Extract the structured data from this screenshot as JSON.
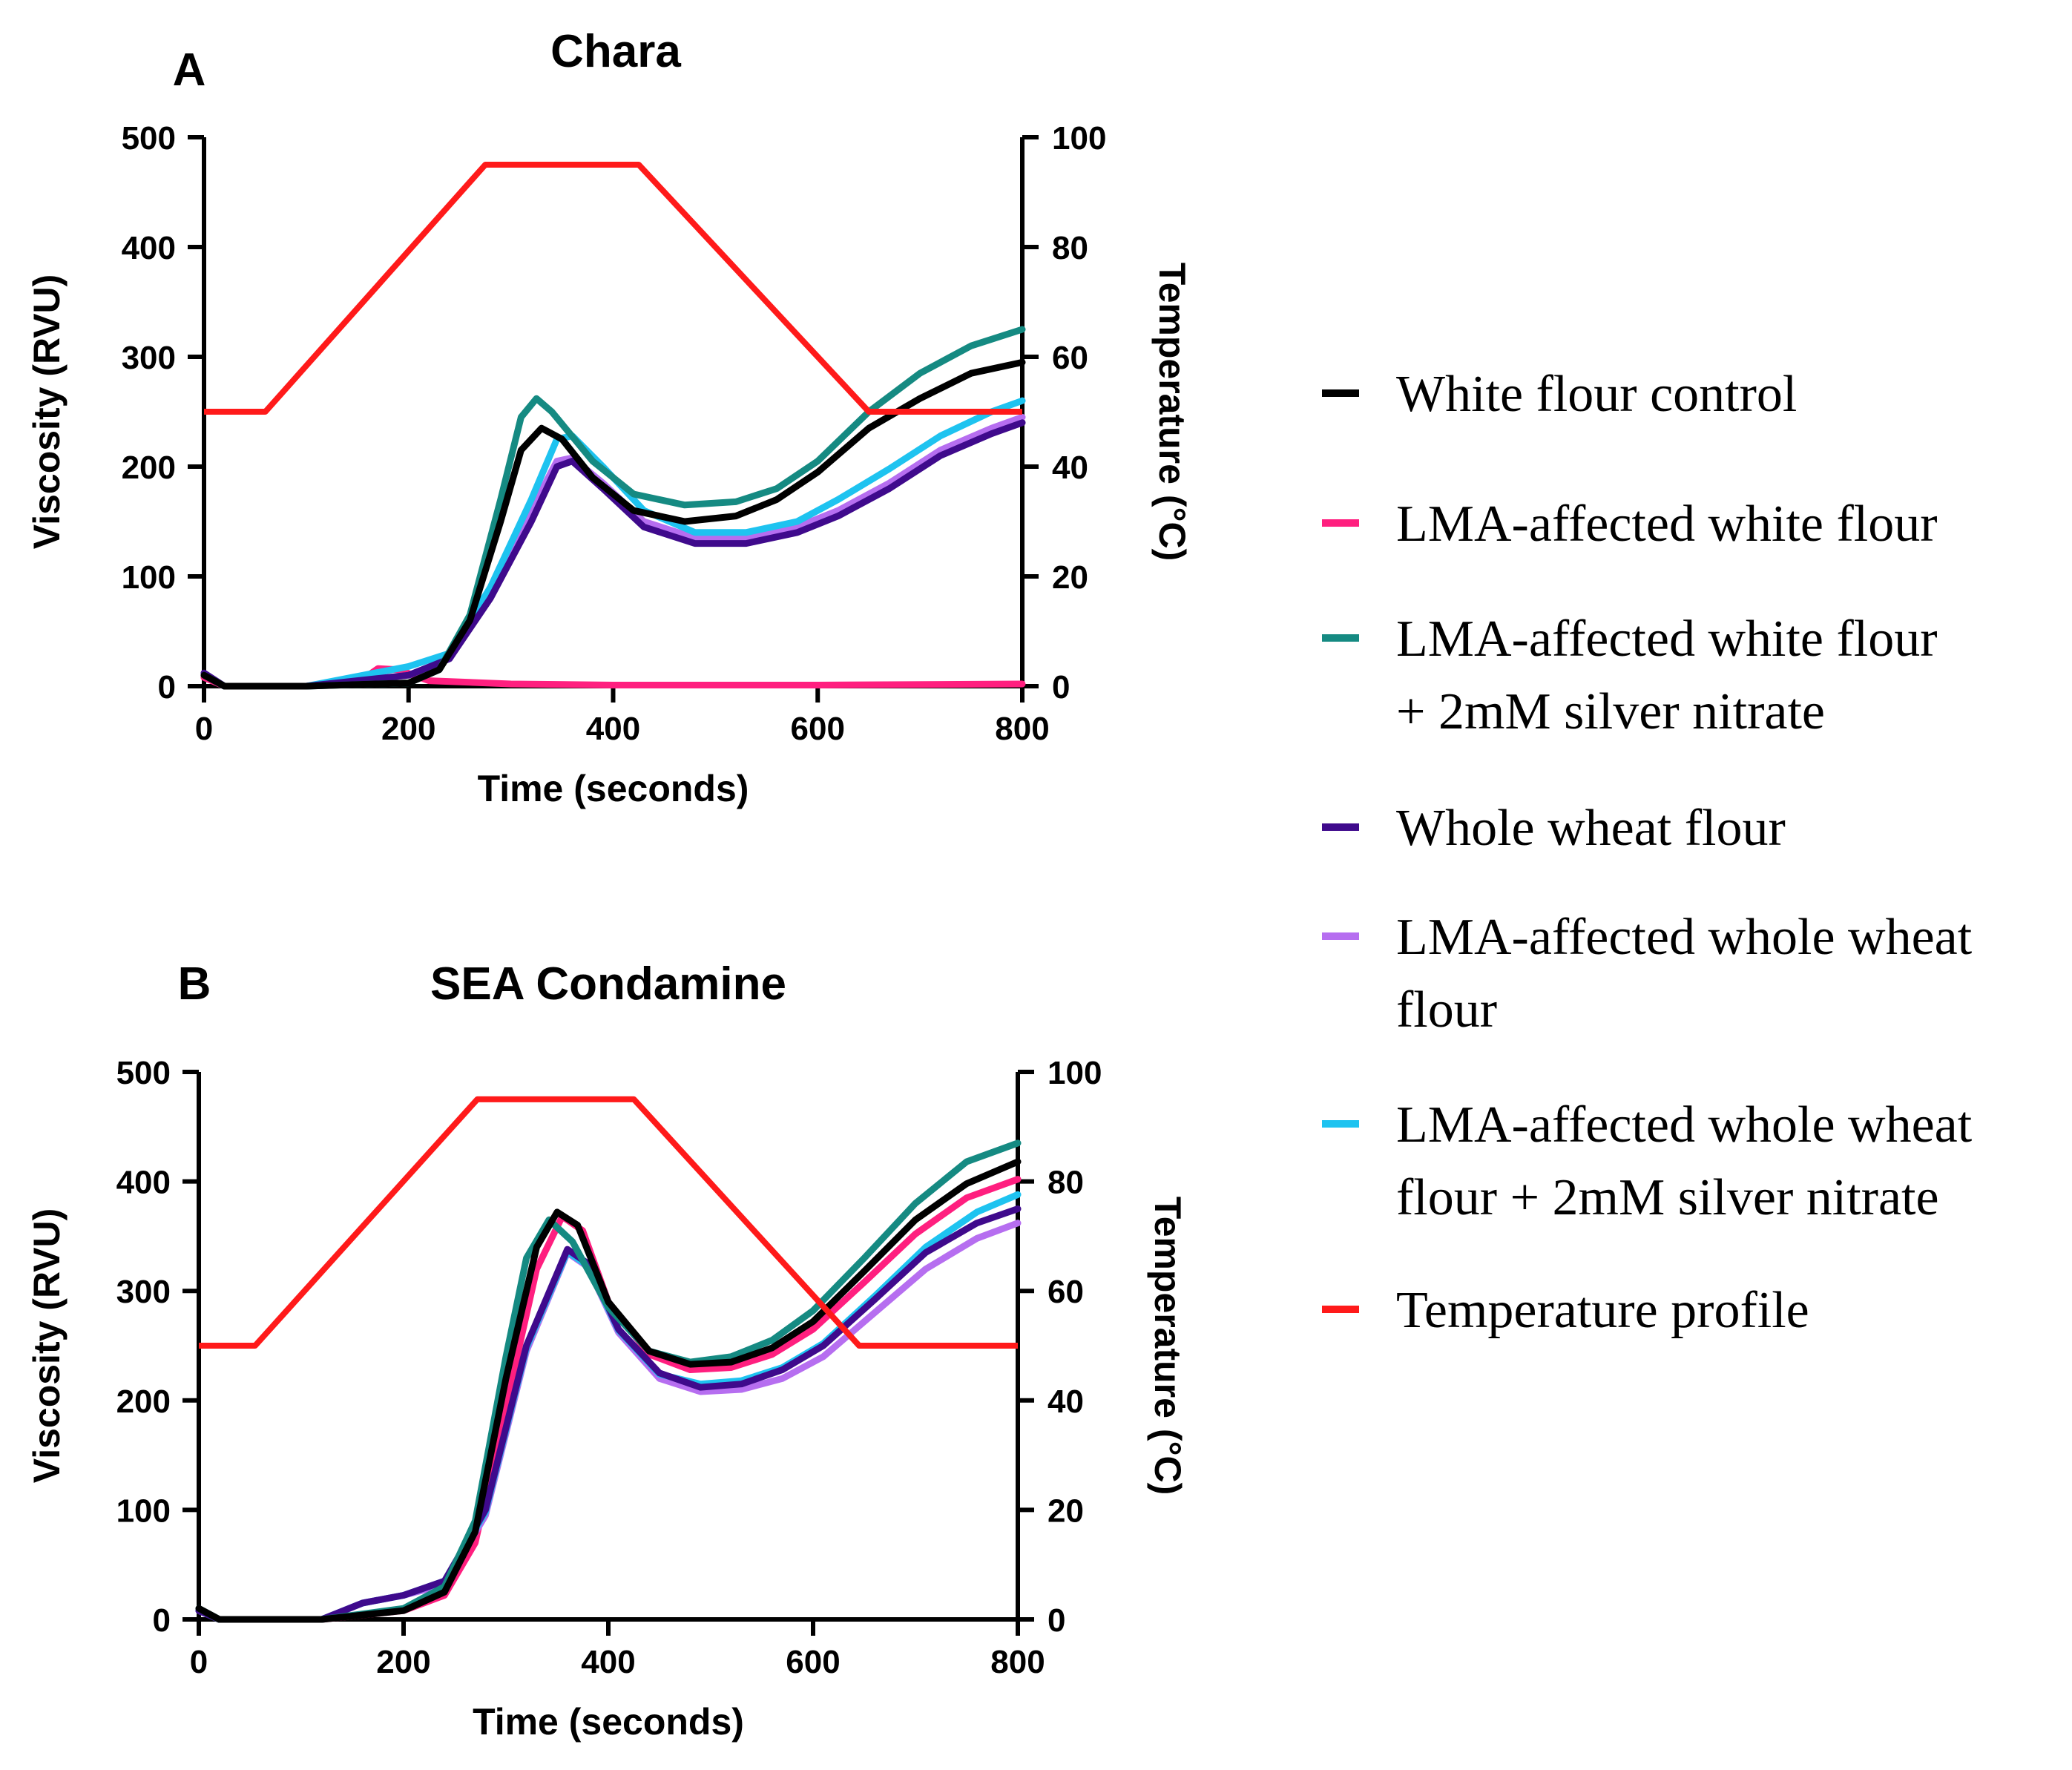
{
  "legend": [
    {
      "key": "white_control",
      "lines": [
        "White flour control"
      ],
      "color": "#000000"
    },
    {
      "key": "lma_white",
      "lines": [
        "LMA-affected white flour"
      ],
      "color": "#ff1f7f"
    },
    {
      "key": "lma_white_ag",
      "lines": [
        "LMA-affected white flour",
        "+ 2mM silver nitrate"
      ],
      "color": "#158a82"
    },
    {
      "key": "whole_wheat",
      "lines": [
        "Whole wheat flour"
      ],
      "color": "#3f0a8c"
    },
    {
      "key": "lma_whole",
      "lines": [
        "LMA-affected whole wheat",
        "flour"
      ],
      "color": "#b66ef0"
    },
    {
      "key": "lma_whole_ag",
      "lines": [
        "LMA-affected whole wheat",
        "flour + 2mM silver nitrate"
      ],
      "color": "#1ec3f0"
    },
    {
      "key": "temperature",
      "lines": [
        "Temperature profile"
      ],
      "color": "#ff1a1a"
    }
  ],
  "chart_data": [
    {
      "type": "line",
      "panel": "A",
      "title": "Chara",
      "xlabel": "Time (seconds)",
      "ylabel": "Viscosity (RVU)",
      "y2label": "Temperature (°C)",
      "xlim": [
        0,
        800
      ],
      "ylim": [
        0,
        500
      ],
      "y2lim": [
        0,
        100
      ],
      "xticks": [
        0,
        200,
        400,
        600,
        800
      ],
      "yticks": [
        0,
        100,
        200,
        300,
        400,
        500
      ],
      "y2ticks": [
        0,
        20,
        40,
        60,
        80,
        100
      ],
      "temperature": {
        "name": "Temperature profile",
        "x": [
          0,
          60,
          275,
          425,
          650,
          800
        ],
        "y": [
          50,
          50,
          95,
          95,
          50,
          50
        ]
      },
      "series": [
        {
          "name": "White flour control",
          "key": "white_control",
          "x": [
            0,
            20,
            100,
            200,
            230,
            260,
            290,
            310,
            330,
            350,
            380,
            420,
            470,
            520,
            560,
            600,
            650,
            700,
            750,
            800
          ],
          "y": [
            10,
            0,
            0,
            3,
            15,
            60,
            150,
            215,
            235,
            225,
            190,
            160,
            150,
            155,
            170,
            195,
            235,
            262,
            285,
            295
          ]
        },
        {
          "name": "LMA-affected white flour",
          "key": "lma_white",
          "x": [
            0,
            20,
            100,
            150,
            170,
            190,
            220,
            300,
            400,
            600,
            800
          ],
          "y": [
            8,
            0,
            0,
            3,
            16,
            15,
            5,
            2,
            1,
            1,
            2
          ]
        },
        {
          "name": "LMA-affected white flour + 2mM silver nitrate",
          "key": "lma_white_ag",
          "x": [
            0,
            20,
            100,
            200,
            230,
            260,
            290,
            310,
            325,
            340,
            380,
            420,
            470,
            520,
            560,
            600,
            650,
            700,
            750,
            800
          ],
          "y": [
            10,
            0,
            0,
            3,
            15,
            65,
            170,
            245,
            262,
            250,
            205,
            175,
            165,
            168,
            180,
            205,
            250,
            285,
            310,
            325
          ]
        },
        {
          "name": "Whole wheat flour",
          "key": "whole_wheat",
          "x": [
            0,
            20,
            100,
            200,
            240,
            280,
            320,
            345,
            360,
            390,
            430,
            480,
            530,
            580,
            620,
            670,
            720,
            770,
            800
          ],
          "y": [
            12,
            0,
            0,
            10,
            25,
            80,
            150,
            200,
            205,
            180,
            145,
            130,
            130,
            140,
            155,
            180,
            210,
            230,
            240
          ]
        },
        {
          "name": "LMA-affected whole wheat flour",
          "key": "lma_whole",
          "x": [
            0,
            20,
            100,
            200,
            240,
            280,
            320,
            345,
            360,
            390,
            430,
            480,
            530,
            580,
            620,
            670,
            720,
            770,
            800
          ],
          "y": [
            10,
            0,
            0,
            10,
            25,
            85,
            160,
            205,
            208,
            185,
            150,
            135,
            135,
            145,
            160,
            185,
            215,
            235,
            245
          ]
        },
        {
          "name": "LMA-affected whole wheat flour + 2mM silver nitrate",
          "key": "lma_whole_ag",
          "x": [
            0,
            20,
            100,
            200,
            240,
            280,
            320,
            345,
            360,
            390,
            430,
            480,
            530,
            580,
            620,
            670,
            720,
            770,
            800
          ],
          "y": [
            10,
            0,
            0,
            18,
            30,
            90,
            170,
            225,
            228,
            200,
            160,
            140,
            140,
            150,
            170,
            198,
            228,
            250,
            260
          ]
        }
      ]
    },
    {
      "type": "line",
      "panel": "B",
      "title": "SEA Condamine",
      "xlabel": "Time (seconds)",
      "ylabel": "Viscosity (RVU)",
      "y2label": "Temperature (°C)",
      "xlim": [
        0,
        800
      ],
      "ylim": [
        0,
        500
      ],
      "y2lim": [
        0,
        100
      ],
      "xticks": [
        0,
        200,
        400,
        600,
        800
      ],
      "yticks": [
        0,
        100,
        200,
        300,
        400,
        500
      ],
      "y2ticks": [
        0,
        20,
        40,
        60,
        80,
        100
      ],
      "temperature": {
        "name": "Temperature profile",
        "x": [
          0,
          55,
          272,
          425,
          645,
          800
        ],
        "y": [
          50,
          50,
          95,
          95,
          50,
          50
        ]
      },
      "series": [
        {
          "name": "White flour control",
          "key": "white_control",
          "x": [
            0,
            20,
            120,
            200,
            240,
            270,
            300,
            330,
            350,
            370,
            400,
            440,
            480,
            520,
            560,
            600,
            650,
            700,
            750,
            800
          ],
          "y": [
            10,
            0,
            0,
            8,
            25,
            80,
            220,
            340,
            372,
            360,
            290,
            245,
            233,
            235,
            248,
            272,
            318,
            365,
            398,
            418
          ]
        },
        {
          "name": "LMA-affected white flour",
          "key": "lma_white",
          "x": [
            0,
            20,
            120,
            200,
            240,
            270,
            300,
            330,
            355,
            375,
            400,
            440,
            480,
            520,
            560,
            600,
            650,
            700,
            750,
            800
          ],
          "y": [
            8,
            0,
            0,
            8,
            22,
            70,
            195,
            320,
            368,
            355,
            290,
            242,
            228,
            230,
            242,
            265,
            308,
            352,
            385,
            402
          ]
        },
        {
          "name": "LMA-affected white flour + 2mM silver nitrate",
          "key": "lma_white_ag",
          "x": [
            0,
            20,
            120,
            200,
            240,
            270,
            300,
            320,
            342,
            365,
            400,
            440,
            480,
            520,
            560,
            600,
            650,
            700,
            750,
            800
          ],
          "y": [
            10,
            0,
            0,
            10,
            30,
            90,
            240,
            330,
            365,
            345,
            285,
            245,
            235,
            240,
            255,
            282,
            330,
            380,
            418,
            435
          ]
        },
        {
          "name": "Whole wheat flour",
          "key": "whole_wheat",
          "x": [
            0,
            20,
            120,
            160,
            200,
            240,
            280,
            320,
            360,
            380,
            410,
            450,
            490,
            530,
            570,
            610,
            660,
            710,
            760,
            800
          ],
          "y": [
            8,
            0,
            0,
            15,
            22,
            35,
            100,
            250,
            338,
            325,
            265,
            225,
            212,
            215,
            228,
            250,
            292,
            335,
            362,
            375
          ]
        },
        {
          "name": "LMA-affected whole wheat flour",
          "key": "lma_whole",
          "x": [
            0,
            20,
            120,
            160,
            200,
            240,
            280,
            320,
            360,
            380,
            410,
            450,
            490,
            530,
            570,
            610,
            660,
            710,
            760,
            800
          ],
          "y": [
            8,
            0,
            0,
            15,
            22,
            32,
            95,
            245,
            335,
            322,
            262,
            220,
            208,
            210,
            220,
            240,
            280,
            320,
            348,
            362
          ]
        },
        {
          "name": "LMA-affected whole wheat flour + 2mM silver nitrate",
          "key": "lma_whole_ag",
          "x": [
            0,
            20,
            120,
            160,
            200,
            240,
            280,
            320,
            360,
            380,
            410,
            450,
            490,
            530,
            570,
            610,
            660,
            710,
            760,
            800
          ],
          "y": [
            8,
            0,
            0,
            15,
            22,
            35,
            98,
            248,
            336,
            323,
            264,
            224,
            215,
            218,
            230,
            252,
            295,
            340,
            372,
            388
          ]
        }
      ]
    }
  ]
}
